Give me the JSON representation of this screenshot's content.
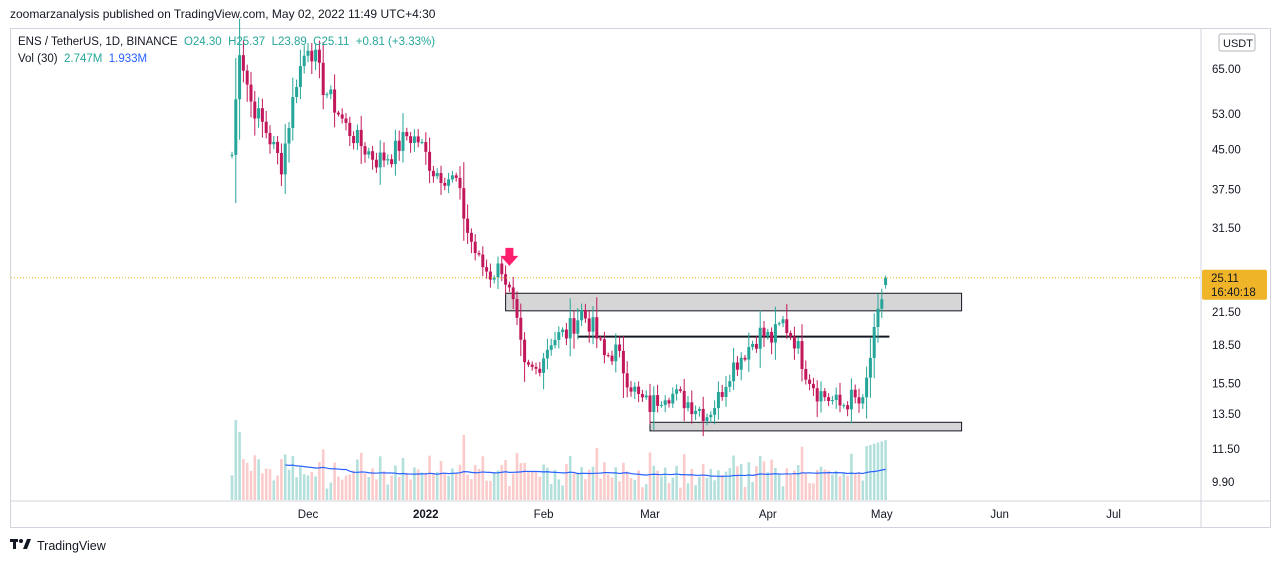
{
  "header": {
    "published_line": "zoomarzanalysis published on TradingView.com, May 02, 2022 11:49 UTC+4:30"
  },
  "legend": {
    "symbol": "ENS / TetherUS, 1D, BINANCE",
    "open": "O24.30",
    "high": "H25.37",
    "low": "L23.89",
    "close": "C25.11",
    "change": "+0.81 (+3.33%)",
    "vol_label": "Vol (30)",
    "vol_value": "2.747M",
    "vol_ma": "1.933M"
  },
  "footer": {
    "brand": "TradingView"
  },
  "colors": {
    "up": "#26a69a",
    "down": "#c2185b",
    "volume_ma": "#2962ff",
    "current_price": "#f0b429",
    "arrow": "#ff1f6e",
    "zone_fill": "#d6d6d6"
  },
  "chart_data": {
    "type": "candlestick",
    "symbol": "ENS / TetherUS",
    "interval": "1D",
    "exchange": "BINANCE",
    "price_axis": {
      "unit": "USDT",
      "scale": "log",
      "ticks": [
        "65.00",
        "53.00",
        "45.00",
        "37.50",
        "31.50",
        "25.11",
        "21.50",
        "18.50",
        "15.50",
        "13.50",
        "11.50",
        "9.90"
      ],
      "top_tick_partial": "7"
    },
    "time_axis": {
      "ticks": [
        "Dec",
        "2022",
        "Feb",
        "Mar",
        "Apr",
        "May",
        "Jun",
        "Jul"
      ]
    },
    "current_price": {
      "value": "25.11",
      "countdown": "16:40:18"
    },
    "ohlc_last": {
      "open": 24.3,
      "high": 25.37,
      "low": 23.89,
      "close": 25.11,
      "change": 0.81,
      "change_pct": 3.33
    },
    "volume": {
      "length": 30,
      "last": "2.747M",
      "ma": "1.933M"
    },
    "price_path": [
      {
        "date": "2021-11-11",
        "close": 44
      },
      {
        "date": "2021-11-13",
        "close": 72
      },
      {
        "date": "2021-11-16",
        "close": 56
      },
      {
        "date": "2021-11-20",
        "close": 49
      },
      {
        "date": "2021-11-24",
        "close": 42
      },
      {
        "date": "2021-11-28",
        "close": 62
      },
      {
        "date": "2021-12-01",
        "close": 73
      },
      {
        "date": "2021-12-03",
        "close": 68
      },
      {
        "date": "2021-12-05",
        "close": 60
      },
      {
        "date": "2021-12-08",
        "close": 55
      },
      {
        "date": "2021-12-11",
        "close": 50
      },
      {
        "date": "2021-12-15",
        "close": 46
      },
      {
        "date": "2021-12-19",
        "close": 43
      },
      {
        "date": "2021-12-23",
        "close": 44
      },
      {
        "date": "2021-12-27",
        "close": 48
      },
      {
        "date": "2021-12-30",
        "close": 47
      },
      {
        "date": "2022-01-03",
        "close": 41
      },
      {
        "date": "2022-01-06",
        "close": 40
      },
      {
        "date": "2022-01-09",
        "close": 39
      },
      {
        "date": "2022-01-12",
        "close": 31
      },
      {
        "date": "2022-01-15",
        "close": 27
      },
      {
        "date": "2022-01-18",
        "close": 25.5
      },
      {
        "date": "2022-01-21",
        "close": 26.5
      },
      {
        "date": "2022-01-24",
        "close": 22
      },
      {
        "date": "2022-01-27",
        "close": 16.5
      },
      {
        "date": "2022-01-30",
        "close": 16.5
      },
      {
        "date": "2022-02-03",
        "close": 19
      },
      {
        "date": "2022-02-07",
        "close": 19.5
      },
      {
        "date": "2022-02-11",
        "close": 21.5
      },
      {
        "date": "2022-02-14",
        "close": 20
      },
      {
        "date": "2022-02-17",
        "close": 17.5
      },
      {
        "date": "2022-02-20",
        "close": 18
      },
      {
        "date": "2022-02-23",
        "close": 16
      },
      {
        "date": "2022-02-26",
        "close": 14.5
      },
      {
        "date": "2022-03-01",
        "close": 14
      },
      {
        "date": "2022-03-05",
        "close": 15
      },
      {
        "date": "2022-03-09",
        "close": 14.5
      },
      {
        "date": "2022-03-13",
        "close": 14
      },
      {
        "date": "2022-03-16",
        "close": 13.5
      },
      {
        "date": "2022-03-19",
        "close": 14.5
      },
      {
        "date": "2022-03-22",
        "close": 16.5
      },
      {
        "date": "2022-03-26",
        "close": 18
      },
      {
        "date": "2022-03-30",
        "close": 19.5
      },
      {
        "date": "2022-04-02",
        "close": 19
      },
      {
        "date": "2022-04-05",
        "close": 20.5
      },
      {
        "date": "2022-04-08",
        "close": 19
      },
      {
        "date": "2022-04-11",
        "close": 16.5
      },
      {
        "date": "2022-04-14",
        "close": 15
      },
      {
        "date": "2022-04-17",
        "close": 14.5
      },
      {
        "date": "2022-04-20",
        "close": 14
      },
      {
        "date": "2022-04-23",
        "close": 14.5
      },
      {
        "date": "2022-04-26",
        "close": 14
      },
      {
        "date": "2022-04-28",
        "close": 17.5
      },
      {
        "date": "2022-04-30",
        "close": 21
      },
      {
        "date": "2022-05-02",
        "close": 25.11
      }
    ],
    "annotations": [
      {
        "type": "zone",
        "from": "2022-01-22",
        "to": "2022-05-22",
        "low": 21.6,
        "high": 23.4
      },
      {
        "type": "line",
        "from": "2022-02-10",
        "to": "2022-05-03",
        "price": 19.2
      },
      {
        "type": "zone",
        "from": "2022-03-01",
        "to": "2022-05-22",
        "low": 12.5,
        "high": 13.0
      },
      {
        "type": "arrow",
        "direction": "down",
        "date": "2022-01-23",
        "price": 27.5
      }
    ]
  }
}
